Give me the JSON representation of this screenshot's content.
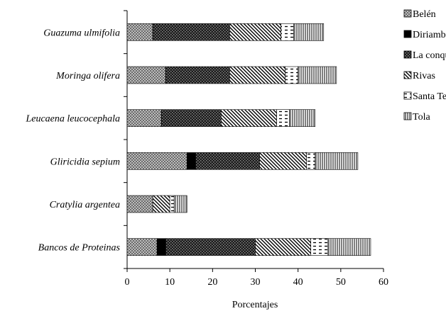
{
  "chart_data": {
    "type": "bar",
    "orientation": "horizontal",
    "stacked": true,
    "title": "",
    "xlabel": "Porcentajes",
    "ylabel": "",
    "xlim": [
      0,
      60
    ],
    "x_ticks": [
      "0",
      "10",
      "20",
      "30",
      "40",
      "50",
      "60"
    ],
    "grid": false,
    "legend_position": "right",
    "categories": [
      "Guazuma ulmifolia",
      "Moringa olifera",
      "Leucaena leucocephala",
      "Gliricidia sepium",
      "Cratylia argentea",
      "Bancos de Proteinas"
    ],
    "series": [
      {
        "name": "Belén",
        "pattern": "crosshatch-light",
        "values": [
          6,
          9,
          8,
          14,
          6,
          7
        ]
      },
      {
        "name": "Diriamba",
        "pattern": "solid-black",
        "values": [
          0,
          0,
          0,
          2,
          0,
          2
        ]
      },
      {
        "name": "La conquista",
        "pattern": "checker-dark",
        "values": [
          18,
          15,
          14,
          15,
          0,
          21
        ]
      },
      {
        "name": "Rivas",
        "pattern": "diagonal-hatch",
        "values": [
          12,
          13,
          13,
          11,
          4,
          13
        ]
      },
      {
        "name": "Santa Teresa",
        "pattern": "dashes",
        "values": [
          3,
          3,
          3,
          2,
          1,
          4
        ]
      },
      {
        "name": "Tola",
        "pattern": "vertical-lines",
        "values": [
          7,
          9,
          6,
          10,
          3,
          10
        ]
      }
    ]
  }
}
